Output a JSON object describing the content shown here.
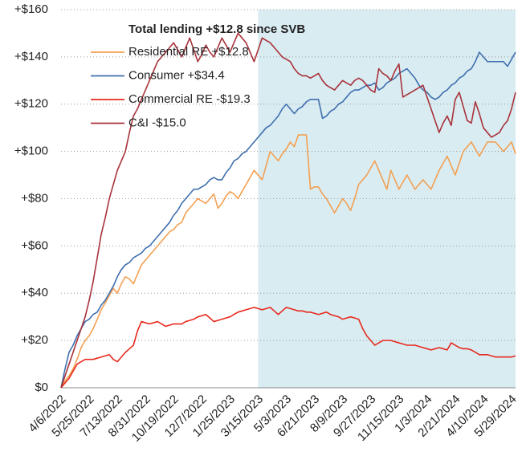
{
  "chart_data": {
    "type": "line",
    "legend_title": "Total lending +$12.8 since SVB",
    "categories": [
      "4/6/2022",
      null,
      null,
      null,
      null,
      null,
      null,
      "5/25/2022",
      null,
      null,
      null,
      null,
      null,
      null,
      "7/13/2022",
      null,
      null,
      null,
      null,
      null,
      null,
      "8/31/2022",
      null,
      null,
      null,
      null,
      null,
      null,
      "10/19/2022",
      null,
      null,
      null,
      null,
      null,
      null,
      "12/7/2022",
      null,
      null,
      null,
      null,
      null,
      null,
      "1/25/2023",
      null,
      null,
      null,
      null,
      null,
      null,
      "3/15/2023",
      null,
      null,
      null,
      null,
      null,
      null,
      "5/3/2023",
      null,
      null,
      null,
      null,
      null,
      null,
      "6/21/2023",
      null,
      null,
      null,
      null,
      null,
      null,
      "8/9/2023",
      null,
      null,
      null,
      null,
      null,
      null,
      "9/27/2023",
      null,
      null,
      null,
      null,
      null,
      null,
      "11/15/2023",
      null,
      null,
      null,
      null,
      null,
      null,
      "1/3/2024",
      null,
      null,
      null,
      null,
      null,
      null,
      "2/21/2024",
      null,
      null,
      null,
      null,
      null,
      null,
      "4/10/2024",
      null,
      null,
      null,
      null,
      null,
      null,
      "5/29/2024",
      null
    ],
    "shaded_from": "3/15/2023",
    "shade_color": "#d9ecf2",
    "series": [
      {
        "name": "Residential RE +$12.8",
        "color": "#f3a052",
        "values": [
          0,
          3,
          5,
          8,
          12,
          17,
          20,
          22,
          25,
          29,
          33,
          36,
          39,
          42,
          40,
          44,
          47,
          46,
          44,
          48,
          52,
          54,
          56,
          58,
          60,
          62,
          64,
          66,
          67,
          69,
          70,
          74,
          76,
          78,
          80,
          79,
          78,
          80,
          82,
          76,
          78,
          81,
          83,
          82,
          80,
          83,
          86,
          89,
          92,
          90,
          88,
          94,
          100,
          98,
          96,
          99,
          101,
          104,
          102,
          107,
          107,
          107,
          84,
          85,
          85,
          82,
          80,
          77,
          74,
          77,
          80,
          78,
          75,
          80,
          86,
          88,
          90,
          93,
          96,
          92,
          88,
          84,
          92,
          88,
          84,
          87,
          90,
          87,
          84,
          86,
          88,
          86,
          84,
          88,
          92,
          95,
          98,
          94,
          90,
          95,
          100,
          102,
          104,
          101,
          98,
          101,
          104,
          104,
          104,
          102,
          100,
          102,
          104,
          99
        ]
      },
      {
        "name": "Consumer +$34.4",
        "color": "#3f6fae",
        "values": [
          0,
          8,
          15,
          18,
          22,
          25,
          28,
          29,
          31,
          32,
          35,
          37,
          40,
          43,
          47,
          50,
          52,
          53,
          55,
          56,
          57,
          59,
          60,
          62,
          64,
          66,
          68,
          70,
          73,
          75,
          78,
          80,
          82,
          84,
          84,
          85,
          86,
          88,
          89,
          88,
          88,
          91,
          93,
          96,
          97,
          99,
          100,
          102,
          104,
          106,
          108,
          110,
          111,
          113,
          115,
          118,
          120,
          118,
          116,
          118,
          119,
          121,
          122,
          122,
          122,
          114,
          115,
          117,
          118,
          120,
          121,
          123,
          125,
          126,
          126,
          127,
          128,
          128,
          129,
          126,
          127,
          129,
          130,
          131,
          133,
          134,
          135,
          133,
          131,
          128,
          126,
          125,
          123,
          122,
          123,
          125,
          126,
          128,
          129,
          131,
          132,
          134,
          135,
          138,
          142,
          140,
          138,
          138,
          138,
          138,
          138,
          136,
          139,
          142
        ]
      },
      {
        "name": "Commercial RE -$19.3",
        "color": "#e82a1e",
        "values": [
          0,
          2,
          4,
          7,
          10,
          11,
          12,
          12,
          12,
          12.5,
          13,
          13.5,
          14,
          12,
          11,
          13,
          15,
          16.5,
          18,
          24,
          28,
          27.5,
          27,
          27.5,
          28,
          27,
          26,
          26.5,
          27,
          27,
          27,
          28,
          28.5,
          29,
          30,
          30.5,
          31,
          29.5,
          28,
          28.5,
          29,
          29.5,
          30,
          31,
          32,
          32.5,
          33,
          33.5,
          34,
          33.5,
          33,
          33.5,
          34,
          32.5,
          31,
          32.5,
          34,
          33.5,
          33,
          32.5,
          32.5,
          32,
          32,
          31.5,
          31,
          31.5,
          32,
          31,
          30.5,
          30,
          29,
          29.5,
          30,
          29.5,
          29,
          25,
          22,
          20,
          18,
          19,
          20,
          20,
          20,
          19.5,
          19,
          18.5,
          18,
          18,
          18,
          17.5,
          17,
          16.5,
          16,
          16.5,
          17,
          16.5,
          16,
          19,
          18,
          17,
          16.5,
          16.5,
          16,
          15,
          14,
          14,
          14,
          13.5,
          13,
          13,
          13,
          13,
          13,
          13.5
        ]
      },
      {
        "name": "C&I -$15.0",
        "color": "#a8323a",
        "values": [
          0,
          5,
          10,
          15,
          20,
          25,
          30,
          37,
          45,
          55,
          65,
          72,
          80,
          86,
          92,
          96,
          100,
          108,
          115,
          118,
          122,
          126,
          130,
          134,
          138,
          140,
          142,
          144,
          146,
          143,
          140,
          144,
          148,
          143,
          138,
          141,
          145,
          142,
          140,
          144,
          148,
          145,
          142,
          146,
          150,
          148,
          146,
          142,
          138,
          143,
          148,
          147,
          146,
          144,
          142,
          140,
          139,
          138,
          135,
          133,
          132,
          132,
          131,
          132,
          133,
          130,
          128,
          127,
          126,
          128,
          130,
          129,
          128,
          130,
          131,
          130,
          128,
          126,
          125,
          135,
          133,
          132,
          130,
          134,
          137,
          123,
          124,
          125,
          126,
          127,
          128,
          123,
          118,
          113,
          108,
          112,
          115,
          111,
          122,
          125,
          119,
          113,
          112,
          121,
          116,
          110,
          108,
          106,
          107,
          108,
          111,
          113,
          118,
          125
        ]
      }
    ],
    "ylim": [
      0,
      160
    ],
    "yticks": [
      {
        "value": 0,
        "label": "$0"
      },
      {
        "value": 20,
        "label": "+$20"
      },
      {
        "value": 40,
        "label": "+$40"
      },
      {
        "value": 60,
        "label": "+$60"
      },
      {
        "value": 80,
        "label": "+$80"
      },
      {
        "value": 100,
        "label": "+$100"
      },
      {
        "value": 120,
        "label": "+$120"
      },
      {
        "value": 140,
        "label": "+$140"
      },
      {
        "value": 160,
        "label": "+$160"
      }
    ],
    "grid": true
  }
}
